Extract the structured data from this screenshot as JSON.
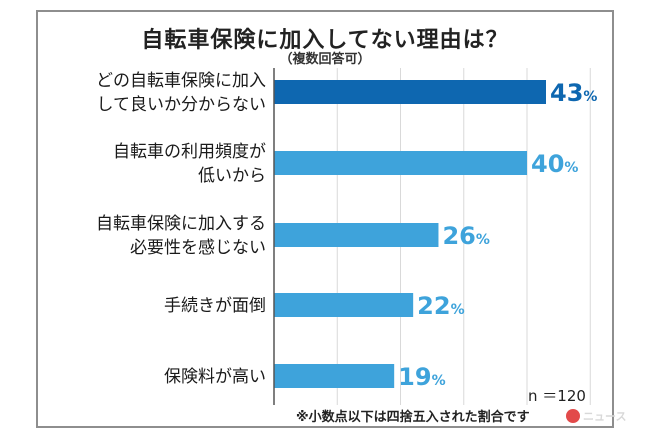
{
  "title": "自転車保険に加入してない理由は？",
  "subtitle": "（複数回答可）",
  "sample_size": "n ＝120",
  "footnote": "※小数点以下は四捨五入された割合です",
  "watermark": "ニュース",
  "colors": {
    "highlight": "#0e67b0",
    "bar": "#3ea3db",
    "axis": "#555555",
    "grid": "#d9d9d9"
  },
  "chart_data": {
    "type": "bar",
    "orientation": "horizontal",
    "unit": "%",
    "xlim": [
      0,
      50
    ],
    "grid": true,
    "categories": [
      [
        "どの自転車保険に加入",
        "して良いか分からない"
      ],
      [
        "自転車の利用頻度が",
        "低いから"
      ],
      [
        "自転車保険に加入する",
        "必要性を感じない"
      ],
      [
        "手続きが面倒"
      ],
      [
        "保険料が高い"
      ]
    ],
    "values": [
      43,
      40,
      26,
      22,
      19
    ],
    "highlight_index": 0
  }
}
